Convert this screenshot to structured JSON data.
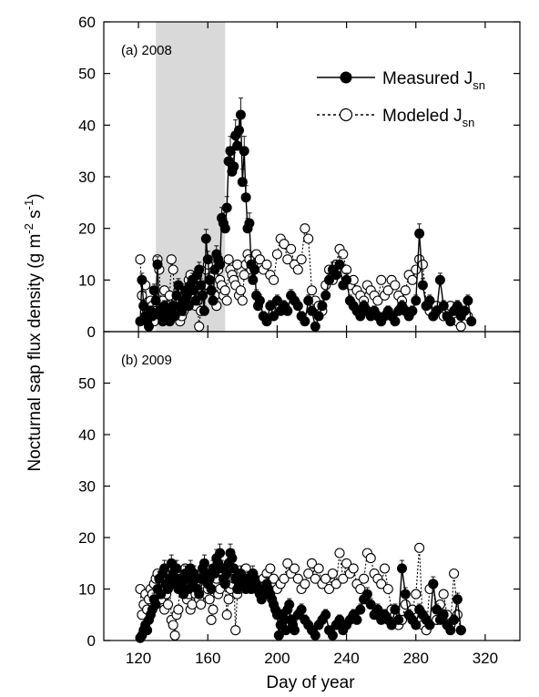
{
  "chart_data": {
    "type": "scatter",
    "xlabel": "Day of year",
    "ylabel": "Nocturnal sap flux density (g m-2 s-1)",
    "ylabel_parts": {
      "main": "Nocturnal sap flux density (g m",
      "exp1": "-2",
      "mid": " s",
      "exp2": "-1",
      "end": ")"
    },
    "xlim": [
      100,
      340
    ],
    "ylim": [
      0,
      60
    ],
    "xticks": [
      120,
      160,
      200,
      240,
      280,
      320
    ],
    "yticks": [
      0,
      10,
      20,
      30,
      40,
      50,
      60
    ],
    "legend": {
      "position": "top-right",
      "measured": {
        "label": "Measured J",
        "sub": "sn"
      },
      "modeled": {
        "label": "Modeled J",
        "sub": "sn"
      }
    },
    "colors": {
      "measured": "#000000",
      "modeled": "#000000",
      "shade": "#d9d9d9"
    },
    "panels": [
      {
        "label": "(a) 2008",
        "shaded_days": [
          130,
          170
        ],
        "measured": {
          "x": [
            121,
            122,
            123,
            124,
            125,
            126,
            127,
            128,
            129,
            130,
            131,
            132,
            133,
            134,
            135,
            136,
            137,
            138,
            139,
            140,
            141,
            142,
            143,
            144,
            145,
            146,
            147,
            148,
            149,
            150,
            151,
            152,
            153,
            154,
            155,
            156,
            157,
            158,
            159,
            160,
            161,
            162,
            163,
            164,
            165,
            166,
            167,
            168,
            169,
            170,
            171,
            172,
            173,
            174,
            175,
            176,
            177,
            178,
            179,
            180,
            181,
            182,
            183,
            184,
            185,
            186,
            187,
            188,
            189,
            190,
            192,
            194,
            196,
            198,
            200,
            202,
            204,
            206,
            208,
            210,
            212,
            214,
            216,
            218,
            220,
            222,
            224,
            226,
            228,
            230,
            232,
            234,
            236,
            238,
            240,
            242,
            244,
            246,
            248,
            250,
            252,
            254,
            256,
            258,
            260,
            262,
            264,
            266,
            268,
            270,
            272,
            274,
            276,
            278,
            280,
            282,
            284,
            286,
            288,
            290,
            292,
            294,
            296,
            298,
            300,
            302,
            304,
            306,
            308,
            310,
            312
          ],
          "y": [
            2,
            10,
            5,
            3,
            2,
            1,
            4,
            3,
            8,
            6,
            13,
            4,
            3,
            2,
            5,
            4,
            3,
            2,
            4,
            5,
            3,
            7,
            9,
            5,
            4,
            6,
            8,
            7,
            5,
            9,
            10,
            8,
            6,
            11,
            12,
            9,
            7,
            4,
            18,
            14,
            10,
            8,
            6,
            12,
            15,
            14,
            13,
            22,
            21,
            20,
            24,
            33,
            35,
            31,
            32,
            38,
            36,
            39,
            42,
            29,
            35,
            26,
            20,
            21,
            13,
            10,
            12,
            7,
            5,
            6,
            3,
            2,
            5,
            3,
            6,
            4,
            5,
            4,
            7,
            6,
            5,
            3,
            2,
            6,
            4,
            1,
            3,
            5,
            7,
            10,
            12,
            11,
            13,
            9,
            10,
            6,
            5,
            4,
            3,
            5,
            4,
            3,
            4,
            3,
            2,
            3,
            4,
            3,
            2,
            4,
            5,
            4,
            3,
            4,
            6,
            19,
            9,
            5,
            6,
            3,
            4,
            10,
            5,
            3,
            2,
            4,
            5,
            3,
            4,
            6,
            2
          ]
        },
        "modeled": {
          "x": [
            121,
            122,
            123,
            124,
            125,
            126,
            127,
            128,
            129,
            130,
            131,
            132,
            133,
            134,
            135,
            136,
            137,
            138,
            139,
            140,
            141,
            142,
            143,
            144,
            145,
            146,
            147,
            148,
            149,
            150,
            151,
            152,
            153,
            154,
            155,
            156,
            157,
            158,
            159,
            160,
            161,
            162,
            163,
            164,
            165,
            166,
            167,
            168,
            169,
            170,
            171,
            172,
            173,
            174,
            175,
            176,
            177,
            178,
            179,
            180,
            181,
            182,
            183,
            184,
            185,
            186,
            188,
            190,
            192,
            194,
            196,
            198,
            200,
            202,
            204,
            206,
            208,
            210,
            212,
            214,
            216,
            218,
            220,
            222,
            224,
            226,
            228,
            230,
            232,
            234,
            236,
            238,
            240,
            242,
            244,
            246,
            248,
            250,
            252,
            254,
            256,
            258,
            260,
            262,
            264,
            266,
            268,
            270,
            272,
            274,
            276,
            278,
            280,
            282,
            284,
            286,
            288,
            290,
            292,
            294,
            296,
            298,
            300,
            302,
            304,
            306,
            308,
            310
          ],
          "y": [
            14,
            7,
            5,
            9,
            4,
            3,
            6,
            5,
            2,
            4,
            14,
            12,
            4,
            6,
            8,
            3,
            5,
            7,
            14,
            12,
            5,
            6,
            8,
            2,
            3,
            4,
            6,
            8,
            10,
            11,
            9,
            7,
            5,
            6,
            1,
            4,
            7,
            9,
            12,
            13,
            10,
            8,
            11,
            7,
            5,
            12,
            10,
            9,
            7,
            8,
            6,
            14,
            12,
            11,
            10,
            9,
            13,
            7,
            8,
            6,
            11,
            13,
            15,
            14,
            12,
            13,
            15,
            14,
            12,
            13,
            11,
            10,
            15,
            18,
            17,
            14,
            16,
            13,
            12,
            14,
            20,
            18,
            8,
            6,
            5,
            4,
            9,
            12,
            10,
            13,
            16,
            15,
            12,
            9,
            10,
            8,
            7,
            6,
            9,
            8,
            7,
            6,
            10,
            7,
            8,
            10,
            9,
            7,
            6,
            8,
            11,
            10,
            12,
            14,
            13,
            5,
            4,
            3,
            5,
            4,
            3,
            4,
            5,
            3,
            2,
            1,
            4,
            3
          ]
        }
      },
      {
        "label": "(b) 2009",
        "shaded_days": null,
        "measured": {
          "x": [
            121,
            122,
            123,
            124,
            125,
            126,
            127,
            128,
            129,
            130,
            131,
            132,
            133,
            134,
            135,
            136,
            137,
            138,
            139,
            140,
            141,
            142,
            143,
            144,
            145,
            146,
            147,
            148,
            149,
            150,
            151,
            152,
            153,
            154,
            155,
            156,
            157,
            158,
            159,
            160,
            161,
            162,
            163,
            164,
            165,
            166,
            167,
            168,
            169,
            170,
            171,
            172,
            173,
            174,
            175,
            176,
            177,
            178,
            179,
            180,
            181,
            182,
            183,
            184,
            185,
            186,
            187,
            188,
            189,
            190,
            191,
            192,
            193,
            194,
            195,
            196,
            197,
            198,
            199,
            200,
            201,
            202,
            203,
            204,
            205,
            206,
            207,
            208,
            209,
            210,
            212,
            214,
            216,
            218,
            220,
            222,
            224,
            226,
            228,
            230,
            232,
            234,
            236,
            238,
            240,
            242,
            244,
            246,
            248,
            250,
            252,
            254,
            256,
            258,
            260,
            262,
            264,
            266,
            268,
            270,
            272,
            274,
            276,
            278,
            280,
            282,
            284,
            286,
            288,
            290,
            292,
            294,
            296,
            298,
            300,
            302,
            304,
            306
          ],
          "y": [
            0.5,
            1,
            2,
            3,
            2,
            4,
            5,
            6,
            8,
            7,
            10,
            12,
            9,
            13,
            14,
            11,
            10,
            12,
            15,
            13,
            11,
            14,
            10,
            12,
            11,
            9,
            13,
            12,
            10,
            14,
            11,
            13,
            12,
            10,
            9,
            12,
            14,
            15,
            13,
            11,
            12,
            10,
            14,
            13,
            16,
            15,
            17,
            14,
            12,
            11,
            13,
            15,
            17,
            16,
            14,
            12,
            10,
            11,
            13,
            12,
            11,
            10,
            12,
            11,
            10,
            13,
            12,
            11,
            10,
            9,
            8,
            10,
            9,
            11,
            10,
            9,
            8,
            7,
            6,
            5,
            1,
            3,
            5,
            4,
            2,
            6,
            7,
            4,
            3,
            2,
            5,
            6,
            4,
            3,
            2,
            1,
            3,
            4,
            5,
            2,
            1,
            3,
            4,
            2,
            3,
            4,
            5,
            4,
            6,
            8,
            9,
            7,
            5,
            6,
            4,
            5,
            4,
            3,
            6,
            4,
            14,
            9,
            5,
            4,
            3,
            6,
            5,
            4,
            3,
            11,
            6,
            4,
            5,
            3,
            2,
            4,
            8,
            2
          ]
        },
        "modeled": {
          "x": [
            121,
            122,
            123,
            124,
            125,
            126,
            127,
            128,
            129,
            130,
            131,
            132,
            133,
            134,
            135,
            136,
            137,
            138,
            139,
            140,
            141,
            142,
            143,
            144,
            145,
            146,
            147,
            148,
            149,
            150,
            151,
            152,
            153,
            154,
            155,
            156,
            157,
            158,
            159,
            160,
            161,
            162,
            163,
            164,
            165,
            166,
            167,
            168,
            169,
            170,
            171,
            172,
            173,
            174,
            175,
            176,
            177,
            178,
            179,
            180,
            182,
            184,
            186,
            188,
            190,
            192,
            194,
            196,
            198,
            200,
            202,
            204,
            206,
            208,
            210,
            212,
            214,
            216,
            218,
            220,
            222,
            224,
            226,
            228,
            230,
            232,
            234,
            236,
            238,
            240,
            242,
            244,
            246,
            248,
            250,
            252,
            254,
            256,
            258,
            260,
            262,
            264,
            266,
            268,
            270,
            272,
            274,
            276,
            278,
            280,
            282,
            284,
            286,
            288,
            290,
            292,
            294,
            296,
            298,
            300,
            302,
            304,
            306
          ],
          "y": [
            10,
            5,
            7,
            9,
            6,
            8,
            10,
            9,
            11,
            12,
            13,
            10,
            8,
            12,
            6,
            9,
            7,
            11,
            4,
            3,
            1,
            5,
            6,
            12,
            13,
            10,
            14,
            8,
            9,
            6,
            7,
            10,
            9,
            11,
            8,
            7,
            12,
            13,
            9,
            10,
            8,
            4,
            6,
            11,
            12,
            9,
            10,
            14,
            13,
            11,
            5,
            8,
            10,
            11,
            12,
            2,
            9,
            10,
            12,
            11,
            14,
            12,
            13,
            10,
            11,
            12,
            13,
            14,
            12,
            10,
            11,
            12,
            15,
            13,
            14,
            12,
            10,
            11,
            13,
            15,
            12,
            14,
            11,
            12,
            10,
            13,
            11,
            17,
            12,
            15,
            13,
            14,
            11,
            10,
            12,
            17,
            16,
            13,
            12,
            11,
            14,
            10,
            6,
            5,
            3,
            4,
            7,
            5,
            6,
            9,
            18,
            3,
            2,
            10,
            11,
            4,
            7,
            9,
            5,
            3,
            13,
            5,
            2
          ]
        }
      }
    ]
  }
}
